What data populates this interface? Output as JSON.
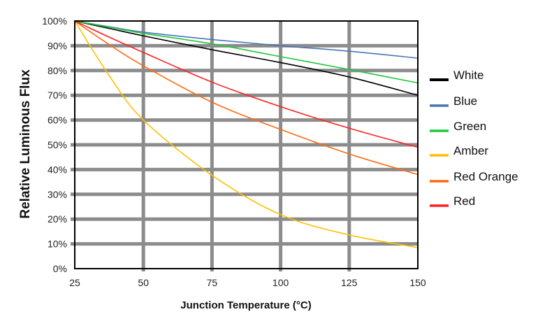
{
  "chart_data": {
    "type": "line",
    "title": "",
    "xlabel": "Junction Temperature (°C)",
    "ylabel": "Relative Luminous Flux",
    "xlim": [
      25,
      150
    ],
    "ylim": [
      0,
      100
    ],
    "x_ticks": [
      "25",
      "50",
      "75",
      "100",
      "125",
      "150"
    ],
    "y_ticks": [
      "0%",
      "10%",
      "20%",
      "30%",
      "40%",
      "50%",
      "60%",
      "70%",
      "80%",
      "90%",
      "100%"
    ],
    "grid": true,
    "legend_position": "right",
    "x": [
      25,
      37.5,
      50,
      75,
      100,
      125,
      150
    ],
    "series": [
      {
        "name": "White",
        "color": "#000000",
        "values": [
          100,
          97,
          94,
          88.4,
          83.2,
          77.4,
          70
        ]
      },
      {
        "name": "Blue",
        "color": "#4a74b4",
        "values": [
          100,
          97.7,
          95.5,
          92.5,
          90,
          87.8,
          85
        ]
      },
      {
        "name": "Green",
        "color": "#1ec83c",
        "values": [
          100,
          97.5,
          95,
          90.8,
          85.6,
          80.4,
          75
        ]
      },
      {
        "name": "Amber",
        "color": "#ffbf00",
        "values": [
          100,
          78,
          60,
          37.7,
          21.8,
          13.6,
          8.5
        ]
      },
      {
        "name": "Red Orange",
        "color": "#ff6a10",
        "values": [
          100,
          90.5,
          81.9,
          67.2,
          56.2,
          46.3,
          38
        ]
      },
      {
        "name": "Red",
        "color": "#ff2020",
        "values": [
          100,
          93.5,
          87.3,
          75.3,
          65.4,
          56.7,
          49
        ]
      }
    ]
  }
}
